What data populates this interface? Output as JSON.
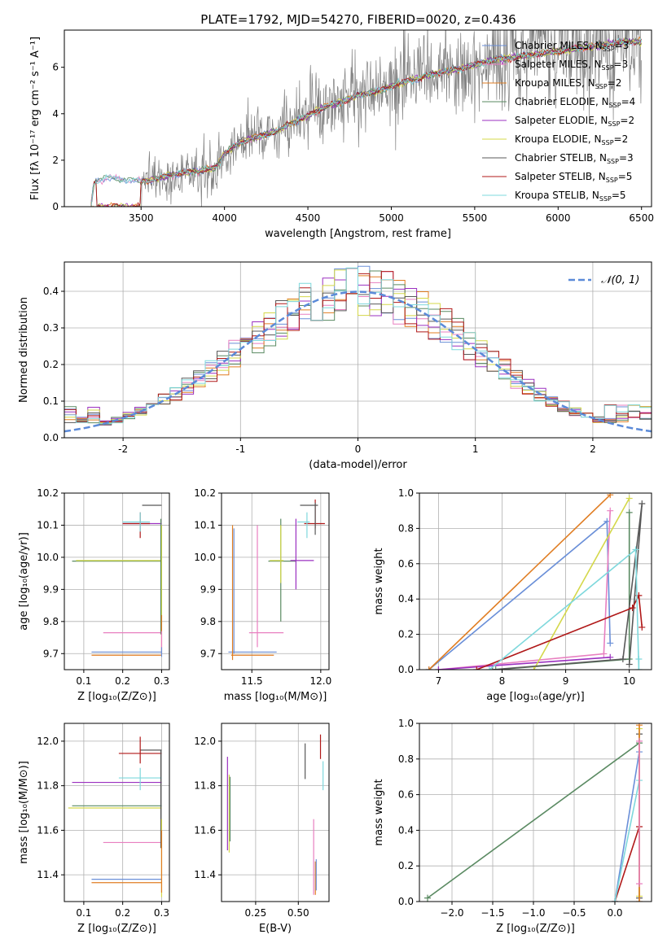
{
  "figure": {
    "title": "PLATE=1792, MJD=54270, FIBERID=0020, z=0.436"
  },
  "colors": {
    "data": "#808080",
    "gauss": "#5b8ad8",
    "models": [
      "#6a8fd8",
      "#e87fc0",
      "#e07d22",
      "#5a8a62",
      "#9b30c0",
      "#d4d84a",
      "#585858",
      "#b01818",
      "#7ed8dc"
    ]
  },
  "chart_data": [
    {
      "type": "line",
      "name": "spectrum",
      "xlabel": "wavelength [Angstrom, rest frame]",
      "ylabel": "Flux [fλ 10⁻¹⁷ erg cm⁻² s⁻¹ A⁻¹]",
      "xlim": [
        3040,
        6560
      ],
      "ylim": [
        0,
        7.6
      ],
      "xticks": [
        3500,
        4000,
        4500,
        5000,
        5500,
        6000,
        6500
      ],
      "yticks": [
        0,
        2,
        4,
        6
      ],
      "legend_position": "top-right",
      "legend": [
        "Chabrier MILES, N_SSP=3",
        "Salpeter MILES, N_SSP=3",
        "Kroupa MILES, N_SSP=2",
        "Chabrier ELODIE, N_SSP=4",
        "Salpeter ELODIE, N_SSP=2",
        "Kroupa ELODIE, N_SSP=2",
        "Chabrier STELIB, N_SSP=3",
        "Salpeter STELIB, N_SSP=5",
        "Kroupa STELIB, N_SSP=5"
      ],
      "continuum_x": [
        3200,
        3215,
        3230,
        3300,
        3400,
        3500,
        3600,
        3700,
        3800,
        3900,
        3950,
        4000,
        4100,
        4200,
        4300,
        4400,
        4500,
        4600,
        4700,
        4800,
        4900,
        5000,
        5100,
        5200,
        5300,
        5400,
        5500,
        5600,
        5700,
        5800,
        5900,
        6000,
        6100,
        6200,
        6300,
        6400,
        6500
      ],
      "continuum_y": [
        0,
        0.9,
        1.1,
        1.25,
        1.15,
        1.1,
        1.2,
        1.4,
        1.5,
        1.6,
        1.7,
        2.3,
        2.8,
        3.0,
        3.2,
        3.6,
        3.9,
        4.3,
        4.5,
        4.8,
        4.9,
        5.2,
        5.4,
        5.6,
        5.8,
        5.9,
        6.1,
        6.3,
        6.4,
        6.5,
        6.6,
        6.7,
        6.8,
        6.9,
        7.0,
        7.1,
        7.1
      ]
    },
    {
      "type": "bar",
      "name": "residual-histogram",
      "xlabel": "(data-model)/error",
      "ylabel": "Normed distribution",
      "xlim": [
        -2.5,
        2.5
      ],
      "ylim": [
        0,
        0.48
      ],
      "xticks": [
        -2,
        -1,
        0,
        1,
        2
      ],
      "yticks": [
        0.0,
        0.1,
        0.2,
        0.3,
        0.4
      ],
      "legend": [
        "𝒩(0, 1)"
      ],
      "legend_position": "top-right",
      "bin_width": 0.1
    },
    {
      "type": "scatter",
      "name": "age-vs-Z",
      "xlabel": "Z [log₁₀(Z/Z⊙)]",
      "ylabel": "age  [log₁₀(age/yr)]",
      "xlim": [
        0.05,
        0.32
      ],
      "ylim": [
        9.65,
        10.2
      ],
      "xticks": [
        0.1,
        0.2,
        0.3
      ],
      "yticks": [
        9.7,
        9.8,
        9.9,
        10.0,
        10.1,
        10.2
      ],
      "points": [
        {
          "x": 0.3,
          "y": 10.05,
          "xerr": 0.005,
          "yerr": 0.08,
          "c": 0
        },
        {
          "x": 0.12,
          "y": 9.705,
          "xerr": 0.0,
          "yerr": 0.0,
          "c": 0
        },
        {
          "x": 0.15,
          "y": 9.765,
          "xerr": 0.0,
          "yerr": 0.0,
          "c": 1
        },
        {
          "x": 0.12,
          "y": 9.695,
          "xerr": 0.0,
          "yerr": 0.0,
          "c": 2
        },
        {
          "x": 0.3,
          "y": 9.99,
          "xerr": 0.0,
          "yerr": 0.0,
          "c": 3
        },
        {
          "x": 0.3,
          "y": 10.11,
          "xerr": 0.0,
          "yerr": 0.0,
          "c": 4
        },
        {
          "x": 0.3,
          "y": 9.99,
          "xerr": 0.0,
          "yerr": 0.0,
          "c": 5
        },
        {
          "x": 0.245,
          "y": 10.16,
          "xerr": 0.0,
          "yerr": 0.0,
          "c": 6
        },
        {
          "x": 0.2,
          "y": 10.105,
          "xerr": 0.0,
          "yerr": 0.0,
          "c": 7
        },
        {
          "x": 0.245,
          "y": 10.09,
          "xerr": 0.0,
          "yerr": 0.0,
          "c": 8
        }
      ]
    },
    {
      "type": "scatter",
      "name": "age-vs-mass",
      "xlabel": "mass [log₁₀(M/M⊙)]",
      "ylabel": "",
      "xlim": [
        11.28,
        12.06
      ],
      "ylim": [
        9.65,
        10.2
      ],
      "xticks": [
        11.5,
        12.0
      ],
      "yticks": [
        9.7,
        9.8,
        9.9,
        10.0,
        10.1,
        10.2
      ],
      "points": []
    },
    {
      "type": "line",
      "name": "weight-vs-age",
      "xlabel": "age  [log₁₀(age/yr)]",
      "ylabel": "mass weight",
      "xlim": [
        6.7,
        10.35
      ],
      "ylim": [
        0,
        1.0
      ],
      "xticks": [
        7,
        8,
        9,
        10
      ],
      "yticks": [
        0.0,
        0.2,
        0.4,
        0.6,
        0.8,
        1.0
      ],
      "series": [
        {
          "c": 0,
          "x": [
            6.85,
            9.65,
            9.7
          ],
          "y": [
            0.0,
            0.84,
            0.15
          ]
        },
        {
          "c": 1,
          "x": [
            7.0,
            9.6,
            9.7
          ],
          "y": [
            0.0,
            0.09,
            0.9
          ]
        },
        {
          "c": 2,
          "x": [
            6.85,
            9.7
          ],
          "y": [
            0.0,
            0.99
          ]
        },
        {
          "c": 3,
          "x": [
            7.9,
            10.0,
            10.0
          ],
          "y": [
            0.0,
            0.06,
            0.89
          ]
        },
        {
          "c": 4,
          "x": [
            7.0,
            9.7
          ],
          "y": [
            0.0,
            0.07
          ]
        },
        {
          "c": 5,
          "x": [
            8.5,
            10.0
          ],
          "y": [
            0.0,
            0.97
          ]
        },
        {
          "c": 6,
          "x": [
            7.85,
            9.9,
            10.2,
            10.0
          ],
          "y": [
            0.0,
            0.06,
            0.94,
            0.03
          ]
        },
        {
          "c": 7,
          "x": [
            7.6,
            10.05,
            10.15,
            10.2
          ],
          "y": [
            0.0,
            0.35,
            0.42,
            0.24
          ]
        },
        {
          "c": 8,
          "x": [
            7.8,
            10.1,
            10.15,
            10.15
          ],
          "y": [
            0.0,
            0.68,
            0.0,
            0.06
          ]
        }
      ]
    },
    {
      "type": "scatter",
      "name": "mass-vs-Z",
      "xlabel": "Z [log₁₀(Z/Z⊙)]",
      "ylabel": "mass [log₁₀(M/M⊙)]",
      "xlim": [
        0.05,
        0.32
      ],
      "ylim": [
        11.28,
        12.08
      ],
      "xticks": [
        0.1,
        0.2,
        0.3
      ],
      "yticks": [
        11.4,
        11.6,
        11.8,
        12.0
      ],
      "points": []
    },
    {
      "type": "scatter",
      "name": "mass-vs-ebv",
      "xlabel": "E(B-V)",
      "ylabel": "",
      "xlim": [
        0.05,
        0.68
      ],
      "ylim": [
        11.28,
        12.08
      ],
      "xticks": [
        0.25,
        0.5
      ],
      "yticks": [
        11.4,
        11.6,
        11.8,
        12.0
      ],
      "points": []
    },
    {
      "type": "line",
      "name": "weight-vs-Z",
      "xlabel": "Z [log₁₀(Z/Z⊙)]",
      "ylabel": "mass weight",
      "xlim": [
        -2.4,
        0.45
      ],
      "ylim": [
        0,
        1.0
      ],
      "xticks": [
        -2.0,
        -1.5,
        -1.0,
        -0.5,
        0.0
      ],
      "yticks": [
        0.0,
        0.2,
        0.4,
        0.6,
        0.8,
        1.0
      ],
      "series": [
        {
          "c": 3,
          "x": [
            -2.3,
            0.3
          ],
          "y": [
            0.02,
            0.89
          ]
        },
        {
          "c": 0,
          "x": [
            0.0,
            0.3
          ],
          "y": [
            0.0,
            0.84
          ]
        },
        {
          "c": 7,
          "x": [
            0.0,
            0.3
          ],
          "y": [
            0.0,
            0.42
          ]
        },
        {
          "c": 8,
          "x": [
            0.0,
            0.3
          ],
          "y": [
            0.0,
            0.68
          ]
        },
        {
          "c": 6,
          "x": [
            0.3,
            0.3
          ],
          "y": [
            0.02,
            0.94
          ]
        },
        {
          "c": 5,
          "x": [
            0.3,
            0.3
          ],
          "y": [
            0.03,
            0.97
          ]
        },
        {
          "c": 2,
          "x": [
            0.3,
            0.3
          ],
          "y": [
            0.0,
            0.99
          ]
        },
        {
          "c": 1,
          "x": [
            0.3,
            0.3
          ],
          "y": [
            0.1,
            0.9
          ]
        }
      ]
    }
  ]
}
